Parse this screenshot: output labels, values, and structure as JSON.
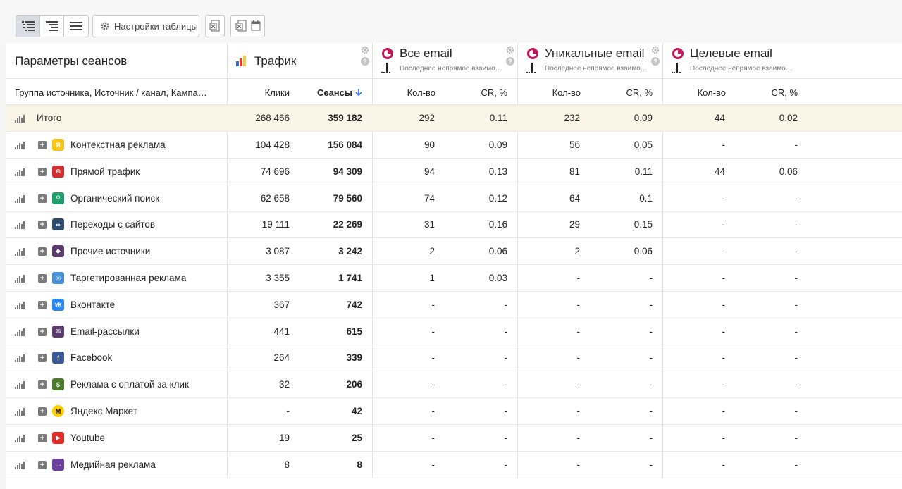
{
  "toolbar": {
    "settings_label": "Настройки таблицы"
  },
  "header": {
    "params_title": "Параметры сеансов",
    "group_label": "Группа источника, Источник / канал, Кампа…",
    "traffic": {
      "title": "Трафик",
      "col_clicks": "Клики",
      "col_sessions": "Сеансы"
    },
    "all_email": {
      "title": "Все email",
      "subtitle": "Последнее непрямое взаимо…",
      "col_count": "Кол-во",
      "col_cr": "CR, %"
    },
    "unique_email": {
      "title": "Уникальные email",
      "subtitle": "Последнее непрямое взаимо…",
      "col_count": "Кол-во",
      "col_cr": "CR, %"
    },
    "target_email": {
      "title": "Целевые email",
      "subtitle": "Последнее непрямое взаимо…",
      "col_count": "Кол-во",
      "col_cr": "CR, %"
    }
  },
  "total": {
    "name": "Итого",
    "clicks": "268 466",
    "sessions": "359 182",
    "all_count": "292",
    "all_cr": "0.11",
    "uniq_count": "232",
    "uniq_cr": "0.09",
    "target_count": "44",
    "target_cr": "0.02"
  },
  "rows": [
    {
      "name": "Контекстная реклама",
      "icon": "yandex-direct-icon",
      "color": "#f5c518",
      "clicks": "104 428",
      "sessions": "156 084",
      "all_count": "90",
      "all_cr": "0.09",
      "uniq_count": "56",
      "uniq_cr": "0.05",
      "target_count": "-",
      "target_cr": "-"
    },
    {
      "name": "Прямой трафик",
      "icon": "direct-traffic-icon",
      "color": "#d32f2f",
      "clicks": "74 696",
      "sessions": "94 309",
      "all_count": "94",
      "all_cr": "0.13",
      "uniq_count": "81",
      "uniq_cr": "0.11",
      "target_count": "44",
      "target_cr": "0.06"
    },
    {
      "name": "Органический поиск",
      "icon": "search-icon",
      "color": "#1e9e6b",
      "clicks": "62 658",
      "sessions": "79 560",
      "all_count": "74",
      "all_cr": "0.12",
      "uniq_count": "64",
      "uniq_cr": "0.1",
      "target_count": "-",
      "target_cr": "-"
    },
    {
      "name": "Переходы с сайтов",
      "icon": "link-icon",
      "color": "#2d4b6e",
      "clicks": "19 111",
      "sessions": "22 269",
      "all_count": "31",
      "all_cr": "0.16",
      "uniq_count": "29",
      "uniq_cr": "0.15",
      "target_count": "-",
      "target_cr": "-"
    },
    {
      "name": "Прочие источники",
      "icon": "other-sources-icon",
      "color": "#5b3a6e",
      "clicks": "3 087",
      "sessions": "3 242",
      "all_count": "2",
      "all_cr": "0.06",
      "uniq_count": "2",
      "uniq_cr": "0.06",
      "target_count": "-",
      "target_cr": "-"
    },
    {
      "name": "Таргетированная реклама",
      "icon": "target-icon",
      "color": "#4a90d9",
      "clicks": "3 355",
      "sessions": "1 741",
      "all_count": "1",
      "all_cr": "0.03",
      "uniq_count": "-",
      "uniq_cr": "-",
      "target_count": "-",
      "target_cr": "-"
    },
    {
      "name": "Вконтакте",
      "icon": "vk-icon",
      "color": "#2787f5",
      "clicks": "367",
      "sessions": "742",
      "all_count": "-",
      "all_cr": "-",
      "uniq_count": "-",
      "uniq_cr": "-",
      "target_count": "-",
      "target_cr": "-"
    },
    {
      "name": "Email-рассылки",
      "icon": "email-icon",
      "color": "#5b3a6e",
      "clicks": "441",
      "sessions": "615",
      "all_count": "-",
      "all_cr": "-",
      "uniq_count": "-",
      "uniq_cr": "-",
      "target_count": "-",
      "target_cr": "-"
    },
    {
      "name": "Facebook",
      "icon": "facebook-icon",
      "color": "#3b5998",
      "clicks": "264",
      "sessions": "339",
      "all_count": "-",
      "all_cr": "-",
      "uniq_count": "-",
      "uniq_cr": "-",
      "target_count": "-",
      "target_cr": "-"
    },
    {
      "name": "Реклама с оплатой за клик",
      "icon": "ppc-icon",
      "color": "#4a7a2a",
      "clicks": "32",
      "sessions": "206",
      "all_count": "-",
      "all_cr": "-",
      "uniq_count": "-",
      "uniq_cr": "-",
      "target_count": "-",
      "target_cr": "-"
    },
    {
      "name": "Яндекс Маркет",
      "icon": "yandex-market-icon",
      "color": "#ffcc00",
      "clicks": "-",
      "sessions": "42",
      "all_count": "-",
      "all_cr": "-",
      "uniq_count": "-",
      "uniq_cr": "-",
      "target_count": "-",
      "target_cr": "-"
    },
    {
      "name": "Youtube",
      "icon": "youtube-icon",
      "color": "#e52d27",
      "clicks": "19",
      "sessions": "25",
      "all_count": "-",
      "all_cr": "-",
      "uniq_count": "-",
      "uniq_cr": "-",
      "target_count": "-",
      "target_cr": "-"
    },
    {
      "name": "Медийная реклама",
      "icon": "media-ads-icon",
      "color": "#6a3fa0",
      "clicks": "8",
      "sessions": "8",
      "all_count": "-",
      "all_cr": "-",
      "uniq_count": "-",
      "uniq_cr": "-",
      "target_count": "-",
      "target_cr": "-"
    }
  ]
}
